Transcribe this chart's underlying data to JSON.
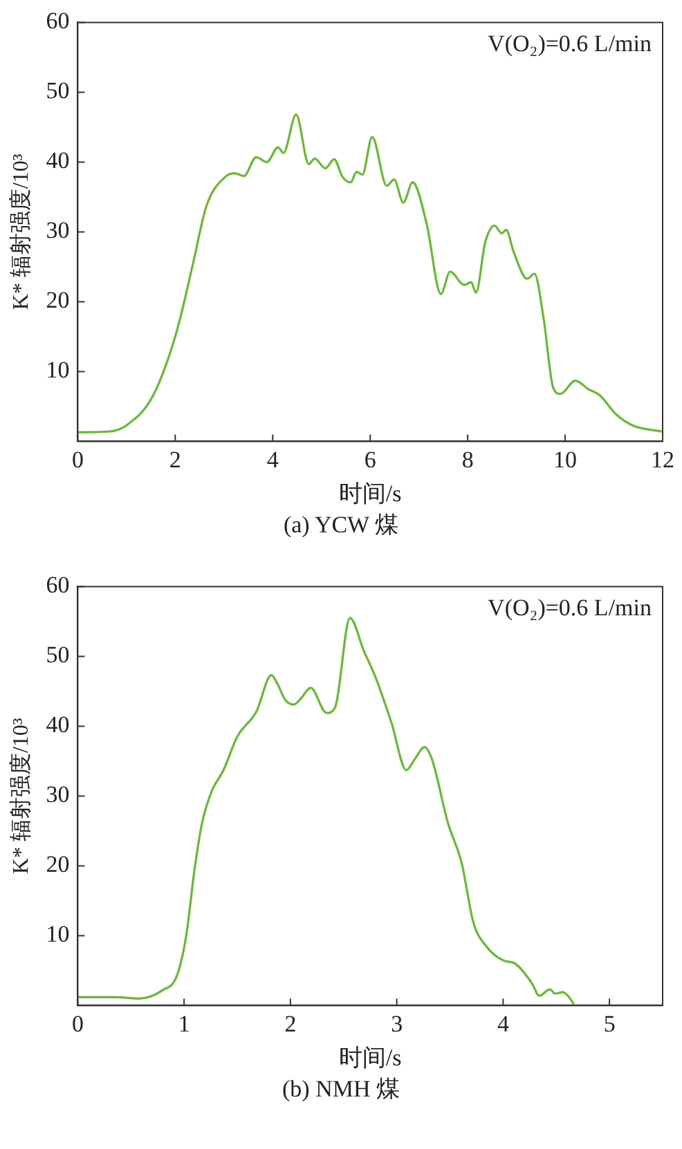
{
  "chart_data": [
    {
      "type": "line",
      "title": "(a) YCW 煤",
      "xlabel": "时间/s",
      "ylabel": "K* 辐射强度/10³",
      "annotations": [
        "V(O₂)=0.6 L/min"
      ],
      "xlim": [
        0,
        12
      ],
      "ylim": [
        0,
        60
      ],
      "xticks": [
        0,
        2,
        4,
        6,
        8,
        10,
        12
      ],
      "yticks": [
        10,
        20,
        30,
        40,
        50,
        60
      ],
      "grid": false,
      "legend": false,
      "marker": "none",
      "line_style": "solid",
      "series": [
        {
          "color": "#66bb33",
          "x": [
            0,
            0.63,
            1.0,
            1.54,
            2.02,
            2.36,
            2.64,
            3.03,
            3.22,
            3.41,
            3.66,
            3.88,
            4.11,
            4.22,
            4.48,
            4.74,
            4.86,
            5.08,
            5.26,
            5.43,
            5.6,
            5.72,
            5.84,
            6.04,
            6.34,
            6.49,
            6.68,
            6.87,
            7.16,
            7.45,
            7.64,
            7.93,
            8.07,
            8.17,
            8.36,
            8.55,
            8.7,
            8.79,
            8.94,
            9.22,
            9.37,
            9.56,
            9.75,
            9.9,
            10.21,
            10.47,
            10.71,
            11.04,
            11.38,
            11.98
          ],
          "values": [
            1.3,
            1.4,
            2.3,
            6.5,
            15.5,
            25.3,
            33.7,
            37.9,
            38.4,
            38.0,
            40.7,
            40.0,
            42.1,
            41.3,
            46.8,
            39.7,
            40.5,
            39.1,
            40.4,
            37.9,
            37.1,
            38.6,
            38.2,
            43.6,
            36.6,
            37.5,
            34.2,
            37.1,
            31.1,
            21.1,
            24.3,
            22.4,
            22.8,
            21.3,
            28.5,
            30.9,
            29.8,
            30.3,
            27.2,
            23.3,
            24.0,
            17.5,
            7.8,
            6.8,
            8.7,
            7.5,
            6.6,
            3.9,
            2.3,
            1.4
          ]
        }
      ]
    },
    {
      "type": "line",
      "title": "(b) NMH 煤",
      "xlabel": "时间/s",
      "ylabel": "K* 辐射强度/10³",
      "annotations": [
        "V(O₂)=0.6 L/min"
      ],
      "xlim": [
        0,
        5.5
      ],
      "ylim": [
        0,
        60
      ],
      "xticks": [
        0,
        1,
        2,
        3,
        4,
        5
      ],
      "yticks": [
        10,
        20,
        30,
        40,
        50,
        60
      ],
      "grid": false,
      "legend": false,
      "marker": "none",
      "line_style": "solid",
      "series": [
        {
          "color": "#66bb33",
          "x": [
            0,
            0.36,
            0.58,
            0.8,
            0.93,
            1.02,
            1.1,
            1.17,
            1.26,
            1.37,
            1.5,
            1.68,
            1.82,
            1.88,
            1.95,
            2.03,
            2.1,
            2.19,
            2.34,
            2.42,
            2.56,
            2.69,
            2.8,
            2.95,
            3.09,
            3.17,
            3.26,
            3.33,
            3.48,
            3.61,
            3.72,
            3.83,
            4.01,
            4.1,
            4.27,
            4.34,
            4.44,
            4.49,
            4.56,
            4.62,
            4.67
          ],
          "values": [
            1.2,
            1.2,
            1.0,
            2.2,
            4.2,
            10.0,
            19.7,
            26.2,
            30.7,
            33.7,
            38.5,
            42.1,
            47.3,
            46.0,
            43.8,
            43.1,
            44.0,
            45.5,
            41.9,
            42.7,
            55.5,
            50.8,
            47.0,
            40.5,
            33.7,
            35.3,
            37.0,
            35.3,
            26.2,
            20.4,
            11.9,
            8.7,
            6.4,
            6.1,
            3.2,
            1.4,
            2.3,
            1.7,
            1.9,
            1.2,
            0
          ]
        }
      ]
    }
  ]
}
